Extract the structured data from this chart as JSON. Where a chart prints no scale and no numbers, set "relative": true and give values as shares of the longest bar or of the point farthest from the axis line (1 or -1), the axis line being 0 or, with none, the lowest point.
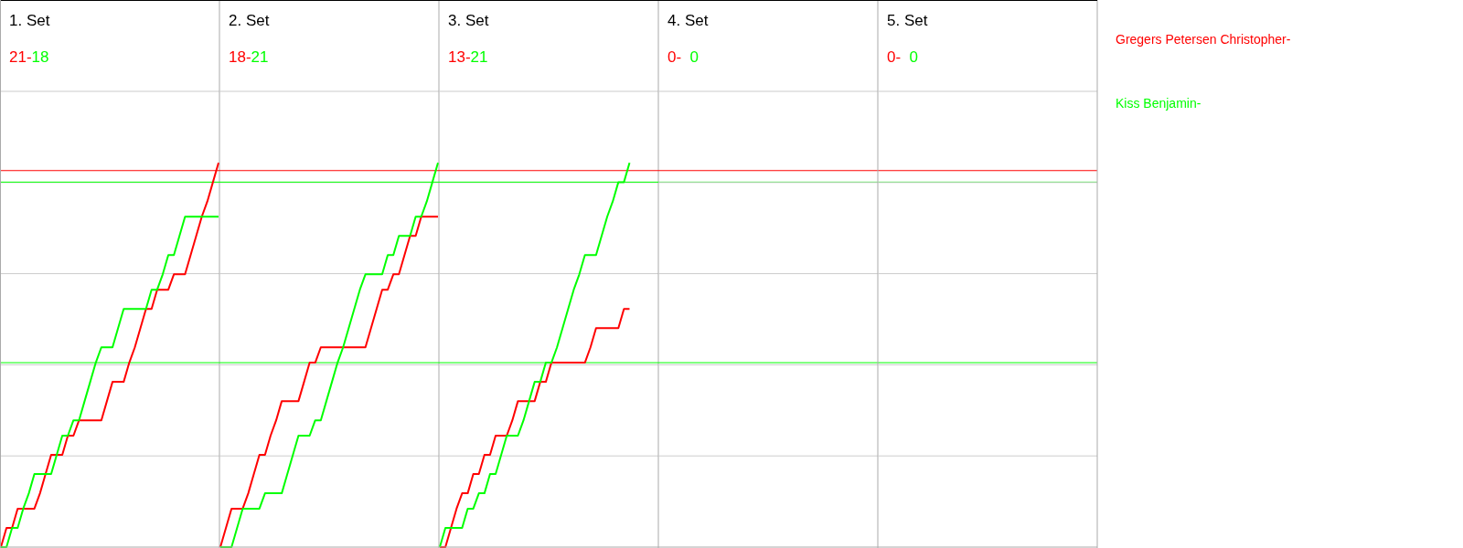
{
  "chart_data": [
    {
      "type": "line",
      "title": "1. Set",
      "relative": true,
      "grid": "y",
      "categories": [
        null,
        null,
        null,
        null,
        null,
        null,
        null,
        null,
        null,
        null,
        null,
        null,
        null,
        null,
        null,
        null,
        null,
        null,
        null,
        null,
        null,
        null,
        null,
        null,
        null,
        null,
        null,
        null,
        null,
        null,
        null,
        null,
        null,
        null,
        null,
        null,
        null,
        null,
        null,
        null
      ],
      "annotations": [
        "21-",
        "18"
      ],
      "ref_lines": [
        {
          "axis": "y",
          "value": 0.98,
          "color": "#ff0000"
        },
        {
          "axis": "y",
          "value": 0.95,
          "color": "#00ff00"
        },
        {
          "axis": "y",
          "value": 0.48,
          "color": "#00ff00"
        }
      ],
      "series": [
        {
          "name": "Gregers Petersen Christopher-",
          "color": "#ff0000",
          "values": [
            0,
            0.05,
            0.05,
            0.1,
            0.1,
            0.1,
            0.1,
            0.14,
            0.19,
            0.24,
            0.24,
            0.24,
            0.29,
            0.29,
            0.33,
            0.33,
            0.33,
            0.33,
            0.33,
            0.38,
            0.43,
            0.43,
            0.43,
            0.48,
            0.52,
            0.57,
            0.62,
            0.62,
            0.67,
            0.67,
            0.67,
            0.71,
            0.71,
            0.71,
            0.76,
            0.81,
            0.86,
            0.9,
            0.95,
            1
          ]
        },
        {
          "name": "Kiss Benjamin-",
          "color": "#00ff00",
          "values": [
            0,
            0,
            0.05,
            0.05,
            0.1,
            0.14,
            0.19,
            0.19,
            0.19,
            0.19,
            0.24,
            0.29,
            0.29,
            0.33,
            0.33,
            0.38,
            0.43,
            0.48,
            0.52,
            0.52,
            0.52,
            0.57,
            0.62,
            0.62,
            0.62,
            0.62,
            0.62,
            0.67,
            0.67,
            0.71,
            0.76,
            0.76,
            0.81,
            0.86,
            0.86,
            0.86,
            0.86,
            0.86,
            0.86,
            0.86
          ]
        }
      ]
    },
    {
      "type": "line",
      "title": "2. Set",
      "relative": true,
      "grid": "y",
      "categories": [
        null,
        null,
        null,
        null,
        null,
        null,
        null,
        null,
        null,
        null,
        null,
        null,
        null,
        null,
        null,
        null,
        null,
        null,
        null,
        null,
        null,
        null,
        null,
        null,
        null,
        null,
        null,
        null,
        null,
        null,
        null,
        null,
        null,
        null,
        null,
        null,
        null,
        null,
        null,
        null
      ],
      "annotations": [
        "18-",
        "21"
      ],
      "ref_lines": [
        {
          "axis": "y",
          "value": 0.98,
          "color": "#ff0000"
        },
        {
          "axis": "y",
          "value": 0.95,
          "color": "#00ff00"
        },
        {
          "axis": "y",
          "value": 0.48,
          "color": "#00ff00"
        }
      ],
      "series": [
        {
          "color": "#ff0000",
          "values": [
            0,
            0.05,
            0.1,
            0.1,
            0.1,
            0.14,
            0.19,
            0.24,
            0.24,
            0.29,
            0.33,
            0.38,
            0.38,
            0.38,
            0.38,
            0.43,
            0.48,
            0.48,
            0.52,
            0.52,
            0.52,
            0.52,
            0.52,
            0.52,
            0.52,
            0.52,
            0.52,
            0.57,
            0.62,
            0.67,
            0.67,
            0.71,
            0.71,
            0.76,
            0.81,
            0.81,
            0.86,
            0.86,
            0.86,
            0.86
          ]
        },
        {
          "color": "#00ff00",
          "values": [
            0,
            0,
            0,
            0.05,
            0.1,
            0.1,
            0.1,
            0.1,
            0.14,
            0.14,
            0.14,
            0.14,
            0.19,
            0.24,
            0.29,
            0.29,
            0.29,
            0.33,
            0.33,
            0.38,
            0.43,
            0.48,
            0.52,
            0.57,
            0.62,
            0.67,
            0.71,
            0.71,
            0.71,
            0.71,
            0.76,
            0.76,
            0.81,
            0.81,
            0.81,
            0.86,
            0.86,
            0.9,
            0.95,
            1
          ]
        }
      ]
    },
    {
      "type": "line",
      "title": "3. Set",
      "relative": true,
      "grid": "y",
      "categories": [
        null,
        null,
        null,
        null,
        null,
        null,
        null,
        null,
        null,
        null,
        null,
        null,
        null,
        null,
        null,
        null,
        null,
        null,
        null,
        null,
        null,
        null,
        null,
        null,
        null,
        null,
        null,
        null,
        null,
        null,
        null,
        null,
        null,
        null,
        null,
        null,
        null,
        null,
        null,
        null
      ],
      "annotations": [
        "13-",
        "21"
      ],
      "ref_lines": [
        {
          "axis": "y",
          "value": 0.98,
          "color": "#ff0000"
        },
        {
          "axis": "y",
          "value": 0.95,
          "color": "#00ff00"
        },
        {
          "axis": "y",
          "value": 0.48,
          "color": "#00ff00"
        }
      ],
      "series": [
        {
          "color": "#ff0000",
          "values": [
            0,
            0,
            0.05,
            0.1,
            0.14,
            0.14,
            0.19,
            0.19,
            0.24,
            0.24,
            0.29,
            0.29,
            0.29,
            0.33,
            0.38,
            0.38,
            0.38,
            0.38,
            0.43,
            0.43,
            0.48,
            0.48,
            0.48,
            0.48,
            0.48,
            0.48,
            0.48,
            0.52,
            0.57,
            0.57,
            0.57,
            0.57,
            0.57,
            0.62,
            0.62,
            null,
            null,
            null,
            null,
            null
          ]
        },
        {
          "color": "#00ff00",
          "values": [
            0,
            0.05,
            0.05,
            0.05,
            0.05,
            0.1,
            0.1,
            0.14,
            0.14,
            0.19,
            0.19,
            0.24,
            0.29,
            0.29,
            0.29,
            0.33,
            0.38,
            0.43,
            0.43,
            0.48,
            0.48,
            0.52,
            0.57,
            0.62,
            0.67,
            0.71,
            0.76,
            0.76,
            0.76,
            0.81,
            0.86,
            0.9,
            0.95,
            0.95,
            1,
            null,
            null,
            null,
            null,
            null
          ]
        }
      ]
    },
    {
      "type": "other",
      "title": "4. Set",
      "annotations": [
        "0-",
        "0"
      ]
    },
    {
      "type": "other",
      "title": "5. Set",
      "annotations": [
        "0-",
        "0"
      ]
    }
  ]
}
